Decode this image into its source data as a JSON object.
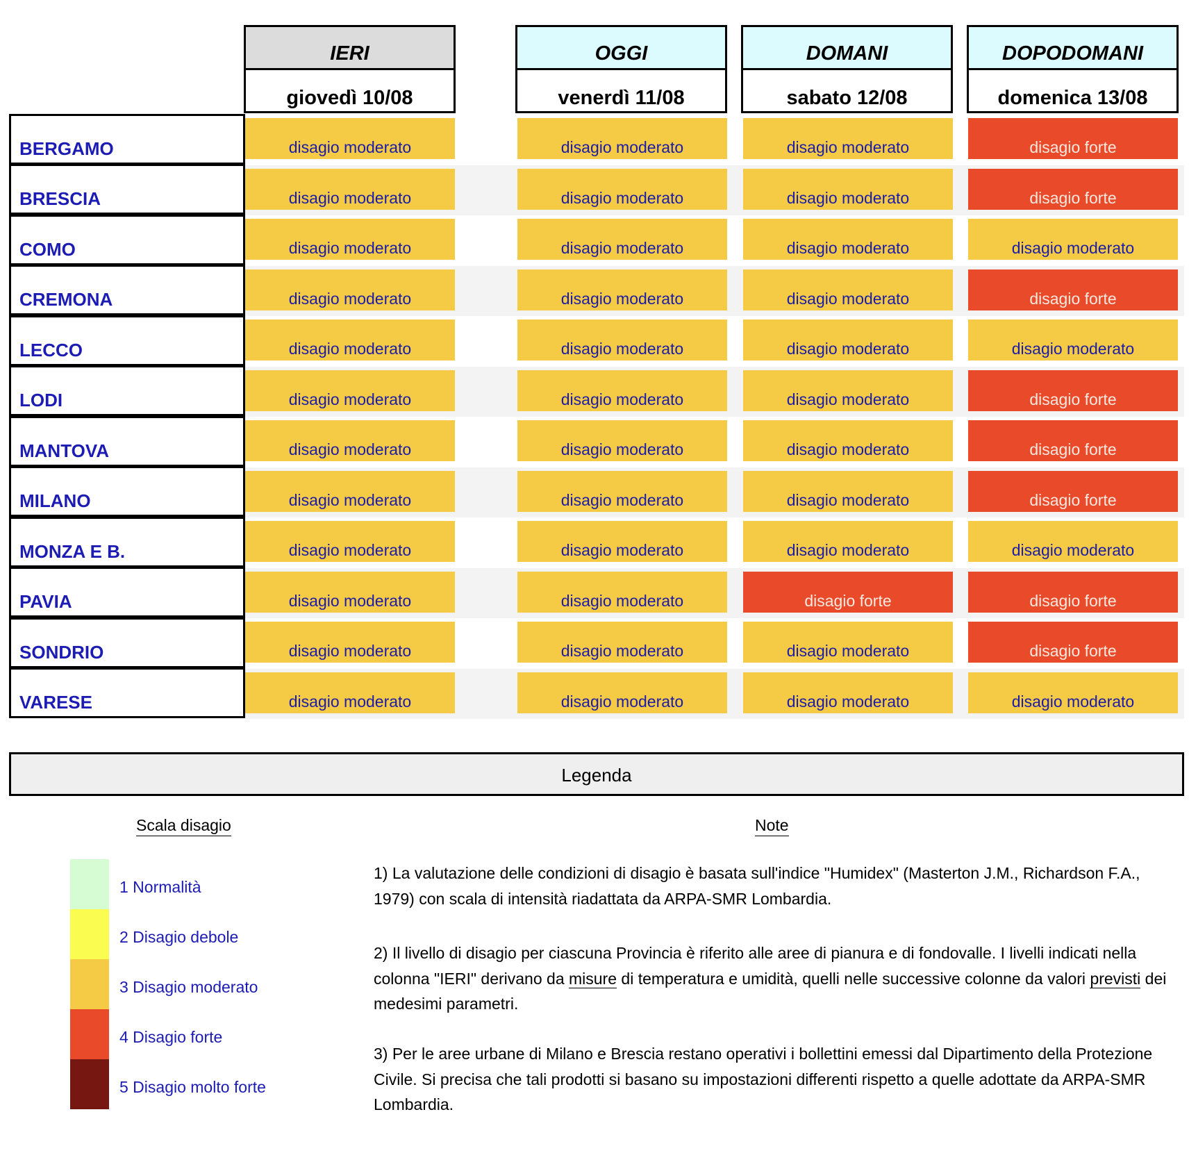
{
  "columns": [
    {
      "label": "IERI",
      "date": "giovedì 10/08"
    },
    {
      "label": "OGGI",
      "date": "venerdì 11/08"
    },
    {
      "label": "DOMANI",
      "date": "sabato 12/08"
    },
    {
      "label": "DOPODOMANI",
      "date": "domenica 13/08"
    }
  ],
  "rows": [
    {
      "province": "BERGAMO",
      "values": [
        "disagio moderato",
        "disagio moderato",
        "disagio moderato",
        "disagio forte"
      ]
    },
    {
      "province": "BRESCIA",
      "values": [
        "disagio moderato",
        "disagio moderato",
        "disagio moderato",
        "disagio forte"
      ]
    },
    {
      "province": "COMO",
      "values": [
        "disagio moderato",
        "disagio moderato",
        "disagio moderato",
        "disagio moderato"
      ]
    },
    {
      "province": "CREMONA",
      "values": [
        "disagio moderato",
        "disagio moderato",
        "disagio moderato",
        "disagio forte"
      ]
    },
    {
      "province": "LECCO",
      "values": [
        "disagio moderato",
        "disagio moderato",
        "disagio moderato",
        "disagio moderato"
      ]
    },
    {
      "province": "LODI",
      "values": [
        "disagio moderato",
        "disagio moderato",
        "disagio moderato",
        "disagio forte"
      ]
    },
    {
      "province": "MANTOVA",
      "values": [
        "disagio moderato",
        "disagio moderato",
        "disagio moderato",
        "disagio forte"
      ]
    },
    {
      "province": "MILANO",
      "values": [
        "disagio moderato",
        "disagio moderato",
        "disagio moderato",
        "disagio forte"
      ]
    },
    {
      "province": "MONZA E B.",
      "values": [
        "disagio moderato",
        "disagio moderato",
        "disagio moderato",
        "disagio moderato"
      ]
    },
    {
      "province": "PAVIA",
      "values": [
        "disagio moderato",
        "disagio moderato",
        "disagio forte",
        "disagio forte"
      ]
    },
    {
      "province": "SONDRIO",
      "values": [
        "disagio moderato",
        "disagio moderato",
        "disagio moderato",
        "disagio forte"
      ]
    },
    {
      "province": "VARESE",
      "values": [
        "disagio moderato",
        "disagio moderato",
        "disagio moderato",
        "disagio moderato"
      ]
    }
  ],
  "level_colors": {
    "disagio moderato": "#f5cb46",
    "disagio forte": "#e94a2a"
  },
  "legend": {
    "title": "Legenda",
    "scale_title": "Scala disagio",
    "notes_title": "Note",
    "scale": [
      {
        "label": "1 Normalità",
        "color": "#d6fcd4"
      },
      {
        "label": "2 Disagio debole",
        "color": "#fbfc50"
      },
      {
        "label": "3 Disagio moderato",
        "color": "#f5cb46"
      },
      {
        "label": "4 Disagio forte",
        "color": "#e94a2a"
      },
      {
        "label": "5 Disagio molto forte",
        "color": "#771711"
      }
    ]
  },
  "notes": {
    "n1": "1) La valutazione delle condizioni di disagio è basata sull'indice \"Humidex\" (Masterton J.M., Richardson F.A., 1979) con scala di intensità riadattata da ARPA-SMR Lombardia.",
    "n2_a": "2) Il livello di disagio per ciascuna Provincia è riferito alle aree di pianura e di fondovalle. I livelli indicati nella colonna \"IERI\" derivano da ",
    "n2_u1": "misure",
    "n2_b": " di temperatura e umidità, quelli nelle successive colonne da valori ",
    "n2_u2": "previsti",
    "n2_c": " dei medesimi parametri.",
    "n3": "3) Per le aree urbane di Milano e Brescia restano operativi i bollettini emessi dal Dipartimento della Protezione Civile. Si precisa che tali prodotti si basano su impostazioni differenti rispetto a quelle adottate da ARPA-SMR Lombardia."
  }
}
